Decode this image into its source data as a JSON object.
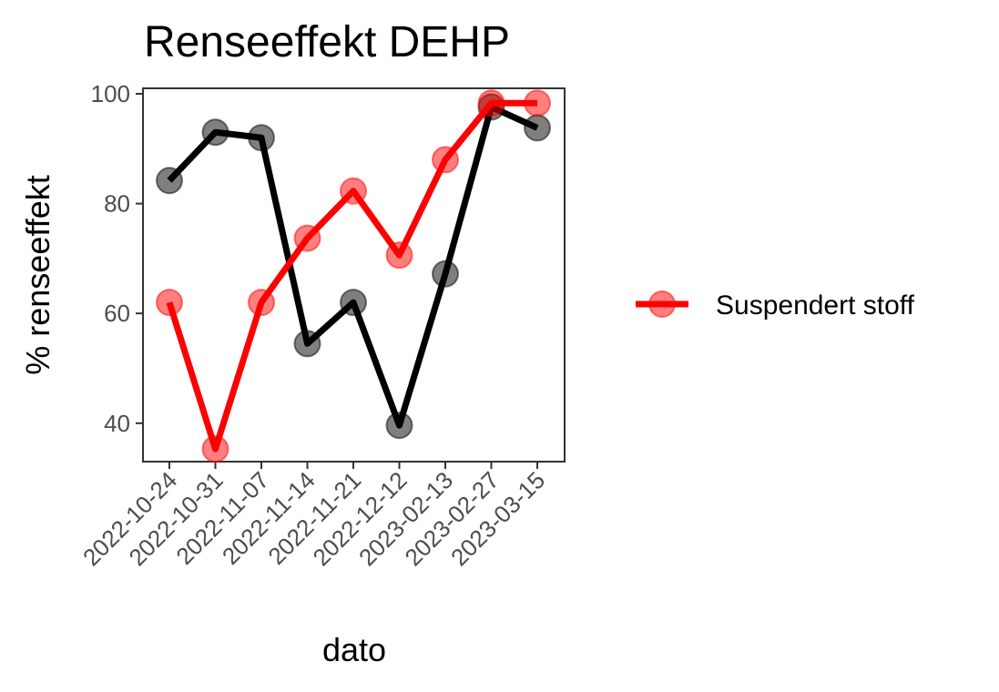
{
  "chart_data": {
    "type": "line",
    "title": "Renseeffekt DEHP",
    "xlabel": "dato",
    "ylabel": "% renseeffekt",
    "x": [
      "2022-10-24",
      "2022-10-31",
      "2022-11-07",
      "2022-11-14",
      "2022-11-21",
      "2022-12-12",
      "2023-02-13",
      "2023-02-27",
      "2023-03-15"
    ],
    "ylim": [
      33,
      101
    ],
    "yticks": [
      40,
      60,
      80,
      100
    ],
    "grid": false,
    "legend_position": "right",
    "series": [
      {
        "color": "#000000",
        "values": [
          84.2,
          93.0,
          92.0,
          54.5,
          62.0,
          39.6,
          67.2,
          97.6,
          93.8
        ]
      },
      {
        "name": "Suspendert stoff",
        "color": "#ff0000",
        "values": [
          62.0,
          35.3,
          62.0,
          73.7,
          82.3,
          70.6,
          88.0,
          98.3,
          98.3
        ]
      }
    ]
  }
}
